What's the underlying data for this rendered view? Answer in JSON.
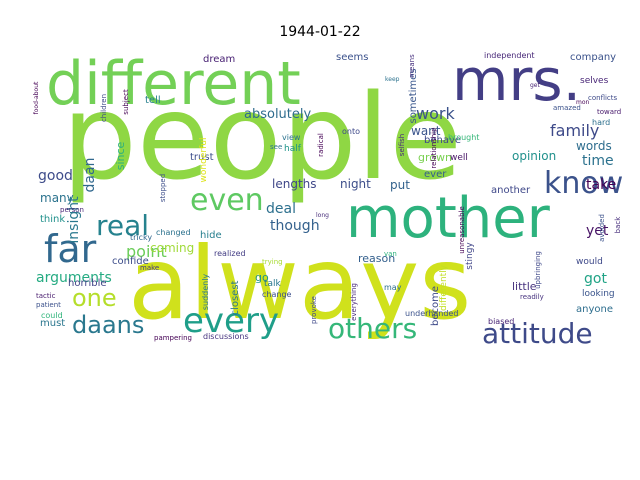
{
  "chart_data": {
    "type": "wordcloud",
    "title": "1944-01-22",
    "words": [
      {
        "text": "people",
        "color": "#8fd744"
      },
      {
        "text": "always",
        "color": "#d0e11c"
      },
      {
        "text": "different",
        "color": "#73d056"
      },
      {
        "text": "mrs.",
        "color": "#433e85"
      },
      {
        "text": "mother",
        "color": "#2db27d"
      },
      {
        "text": "far",
        "color": "#31688e"
      },
      {
        "text": "know",
        "color": "#3b528b"
      },
      {
        "text": "every",
        "color": "#1f9e89"
      },
      {
        "text": "even",
        "color": "#5ec962"
      },
      {
        "text": "real",
        "color": "#26828e"
      },
      {
        "text": "others",
        "color": "#35b779"
      },
      {
        "text": "attitude",
        "color": "#3e4a89"
      },
      {
        "text": "daans",
        "color": "#2a788e"
      },
      {
        "text": "one",
        "color": "#b5de2b"
      },
      {
        "text": "work",
        "color": "#3b528b"
      },
      {
        "text": "family",
        "color": "#3e4a89"
      },
      {
        "text": "point",
        "color": "#6ccd5a"
      },
      {
        "text": "though",
        "color": "#34618d"
      },
      {
        "text": "good",
        "color": "#3e4c8a"
      },
      {
        "text": "insight",
        "color": "#2a788e"
      },
      {
        "text": "daan",
        "color": "#31688e"
      },
      {
        "text": "time",
        "color": "#2c728e"
      },
      {
        "text": "opinion",
        "color": "#21918c"
      },
      {
        "text": "arguments",
        "color": "#25ab82"
      },
      {
        "text": "deal",
        "color": "#2d708e"
      },
      {
        "text": "absolutely",
        "color": "#2f6c8e"
      },
      {
        "text": "take",
        "color": "#440154"
      },
      {
        "text": "got",
        "color": "#20a386"
      },
      {
        "text": "yet",
        "color": "#471365"
      },
      {
        "text": "words",
        "color": "#2e6d8e"
      },
      {
        "text": "want",
        "color": "#3a548c"
      },
      {
        "text": "many",
        "color": "#2c738e"
      },
      {
        "text": "coming",
        "color": "#a0da39"
      },
      {
        "text": "lengths",
        "color": "#3f4788"
      },
      {
        "text": "night",
        "color": "#3d4e8a"
      },
      {
        "text": "put",
        "color": "#33628d"
      },
      {
        "text": "company",
        "color": "#3b528b"
      },
      {
        "text": "selves",
        "color": "#482576"
      },
      {
        "text": "behave",
        "color": "#3e4989"
      },
      {
        "text": "grown",
        "color": "#7ad151"
      },
      {
        "text": "ever",
        "color": "#355f8d"
      },
      {
        "text": "sometimes",
        "color": "#39568c"
      },
      {
        "text": "dream",
        "color": "#482173"
      },
      {
        "text": "seems",
        "color": "#3b518b"
      },
      {
        "text": "trust",
        "color": "#3d4e8a"
      },
      {
        "text": "since",
        "color": "#2ab07f"
      },
      {
        "text": "tell",
        "color": "#27808e"
      },
      {
        "text": "think",
        "color": "#21918c"
      },
      {
        "text": "hide",
        "color": "#277f8e"
      },
      {
        "text": "confide",
        "color": "#3d4d8a"
      },
      {
        "text": "horrible",
        "color": "#414487"
      },
      {
        "text": "reason",
        "color": "#34608d"
      },
      {
        "text": "little",
        "color": "#46327e"
      },
      {
        "text": "another",
        "color": "#3f4889"
      },
      {
        "text": "anyone",
        "color": "#2e6e8e"
      },
      {
        "text": "become",
        "color": "#3e4a89"
      },
      {
        "text": "closest",
        "color": "#2b758e"
      },
      {
        "text": "go",
        "color": "#1f948c"
      },
      {
        "text": "must",
        "color": "#2a768e"
      },
      {
        "text": "could",
        "color": "#31b57b"
      },
      {
        "text": "discussions",
        "color": "#46337f"
      },
      {
        "text": "independent",
        "color": "#482878"
      },
      {
        "text": "means",
        "color": "#46307e"
      },
      {
        "text": "subject",
        "color": "#440154"
      },
      {
        "text": "children",
        "color": "#3e4989"
      },
      {
        "text": "food-about",
        "color": "#440154"
      },
      {
        "text": "keep",
        "color": "#2c728e"
      },
      {
        "text": "selfish",
        "color": "#472c7a"
      },
      {
        "text": "relationship",
        "color": "#440154"
      },
      {
        "text": "well",
        "color": "#471365"
      },
      {
        "text": "brought",
        "color": "#35b779"
      },
      {
        "text": "conflicts",
        "color": "#3e4a89"
      },
      {
        "text": "toward",
        "color": "#481a6c"
      },
      {
        "text": "hard",
        "color": "#2d708e"
      },
      {
        "text": "get",
        "color": "#482475"
      },
      {
        "text": "amazed",
        "color": "#3b528b"
      },
      {
        "text": "mon",
        "color": "#440154"
      },
      {
        "text": "wonderful",
        "color": "#dde318"
      },
      {
        "text": "half",
        "color": "#1f958b"
      },
      {
        "text": "view",
        "color": "#2c728e"
      },
      {
        "text": "radical",
        "color": "#440154"
      },
      {
        "text": "onto",
        "color": "#3e4989"
      },
      {
        "text": "stopped",
        "color": "#3d4e8a"
      },
      {
        "text": "realized",
        "color": "#433d84"
      },
      {
        "text": "see",
        "color": "#2c738e"
      },
      {
        "text": "changed",
        "color": "#2c728e"
      },
      {
        "text": "tricky",
        "color": "#31678e"
      },
      {
        "text": "person",
        "color": "#482677"
      },
      {
        "text": "unreasonable",
        "color": "#440154"
      },
      {
        "text": "long",
        "color": "#472c7a"
      },
      {
        "text": "van",
        "color": "#2db27d"
      },
      {
        "text": "talk",
        "color": "#2a778e"
      },
      {
        "text": "change",
        "color": "#3c4f8a"
      },
      {
        "text": "suddenly",
        "color": "#2a768e"
      },
      {
        "text": "trying",
        "color": "#a8db34"
      },
      {
        "text": "make",
        "color": "#453781"
      },
      {
        "text": "differently",
        "color": "#c2df23"
      },
      {
        "text": "provoke",
        "color": "#3f4889"
      },
      {
        "text": "everything",
        "color": "#482979"
      },
      {
        "text": "may",
        "color": "#2e6f8e"
      },
      {
        "text": "underhanded",
        "color": "#3b528b"
      },
      {
        "text": "stingy",
        "color": "#404588"
      },
      {
        "text": "upbringing",
        "color": "#3f4889"
      },
      {
        "text": "biased",
        "color": "#482576"
      },
      {
        "text": "readily",
        "color": "#46327e"
      },
      {
        "text": "would",
        "color": "#3e4989"
      },
      {
        "text": "looking",
        "color": "#3a548c"
      },
      {
        "text": "avoided",
        "color": "#3b518b"
      },
      {
        "text": "back",
        "color": "#472e7c"
      },
      {
        "text": "tactic",
        "color": "#481c6e"
      },
      {
        "text": "patient",
        "color": "#3b518b"
      },
      {
        "text": "pampering",
        "color": "#440154"
      }
    ]
  }
}
